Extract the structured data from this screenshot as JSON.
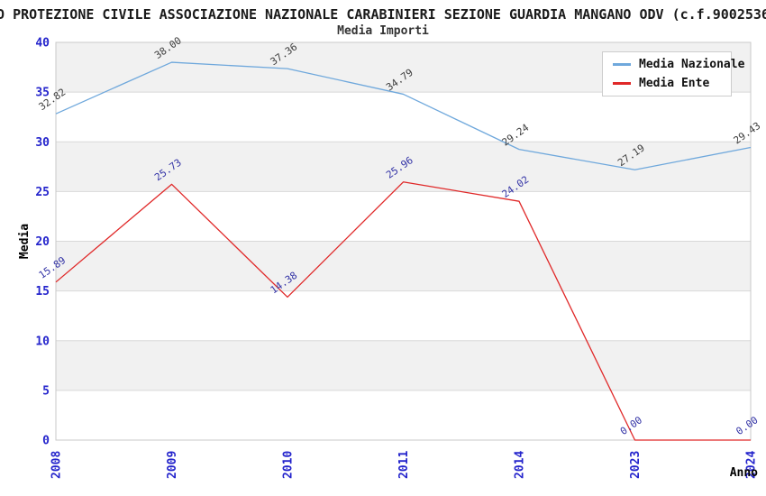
{
  "header": {
    "title": "O PROTEZIONE CIVILE ASSOCIAZIONE NAZIONALE CARABINIERI SEZIONE GUARDIA MANGANO ODV (c.f.9002536",
    "subtitle": "Media Importi"
  },
  "legend": {
    "items": [
      {
        "label": "Media Nazionale",
        "color": "#6fa8dc"
      },
      {
        "label": "Media Ente",
        "color": "#e02828"
      }
    ]
  },
  "axes": {
    "ylabel": "Media",
    "xlabel": "Anno",
    "tick_color": "#2424cc",
    "yticks": [
      0,
      5,
      10,
      15,
      20,
      25,
      30,
      35,
      40
    ]
  },
  "chart_data": {
    "type": "line",
    "title": "Media Importi",
    "xlabel": "Anno",
    "ylabel": "Media",
    "categories": [
      "2008",
      "2009",
      "2010",
      "2011",
      "2014",
      "2023",
      "2024"
    ],
    "series": [
      {
        "name": "Media Nazionale",
        "values": [
          32.82,
          38.0,
          37.36,
          34.79,
          29.24,
          27.19,
          29.43
        ],
        "color": "#6fa8dc",
        "label_color": "#3d3d3d"
      },
      {
        "name": "Media Ente",
        "values": [
          15.89,
          25.73,
          14.38,
          25.96,
          24.02,
          0.0,
          0.0
        ],
        "color": "#e02828",
        "label_color": "#3333a6"
      }
    ],
    "ylim": [
      0,
      40
    ],
    "ytick_step": 5,
    "grid": true,
    "band_fill": "#f1f1f1",
    "grid_color": "#d8d8d8",
    "frame_color": "#c9c9c9",
    "legend_position": "top-right",
    "value_label_decimals": 2
  }
}
